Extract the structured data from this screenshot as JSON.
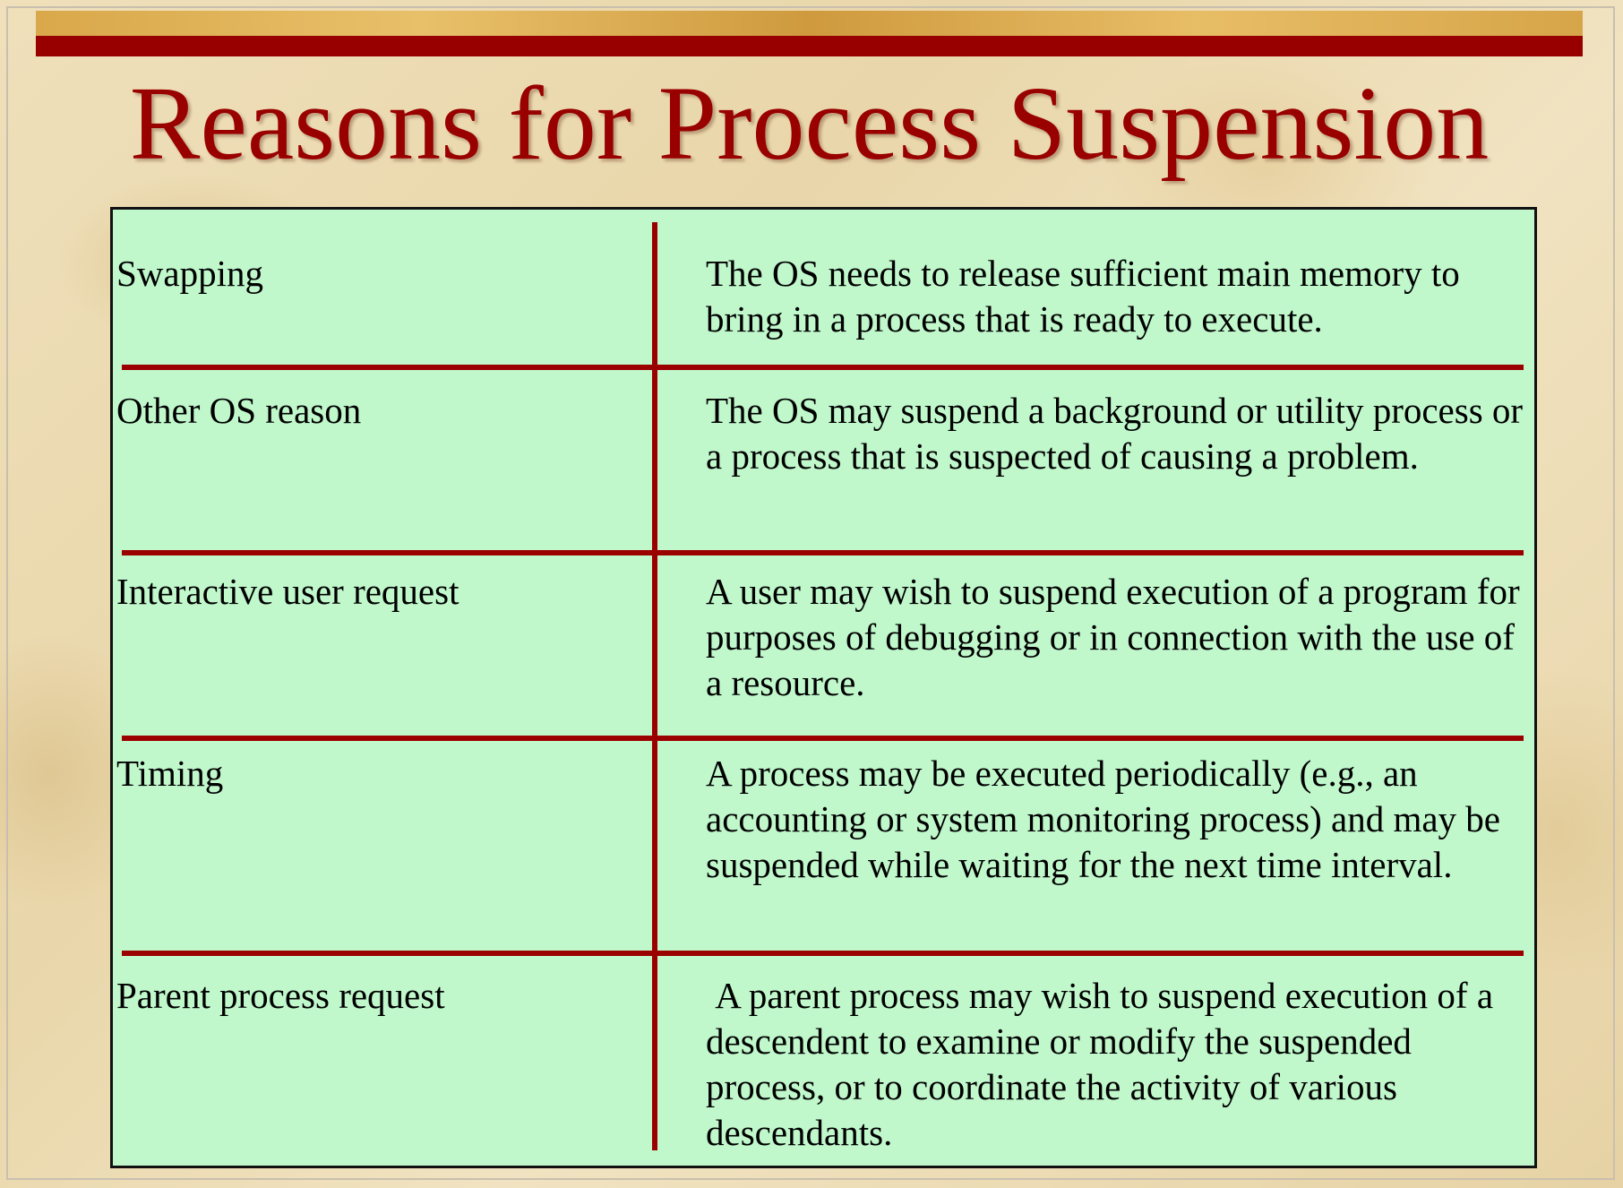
{
  "title": "Reasons for Process Suspension",
  "rows": [
    {
      "reason": "Swapping",
      "description": "The OS needs to release sufficient main memory to bring in a process that is ready to execute."
    },
    {
      "reason": "Other OS reason",
      "description": "The OS may suspend a background or utility process or a process that is suspected of causing a problem."
    },
    {
      "reason": "Interactive user request",
      "description": "A user may wish to suspend execution of a program for purposes of debugging or in connection with the use of a resource."
    },
    {
      "reason": "Timing",
      "description": "A process may be executed periodically (e.g., an accounting or system monitoring process) and may be suspended while waiting for the next time interval."
    },
    {
      "reason": "Parent process request",
      "description": " A parent process may wish to suspend execution of a descendent to examine or modify the suspended process, or to coordinate the activity of various descendants."
    }
  ],
  "colors": {
    "title": "#990000",
    "rule": "#980000",
    "table_background": "#c0f8cc",
    "divider": "#9b0000"
  }
}
